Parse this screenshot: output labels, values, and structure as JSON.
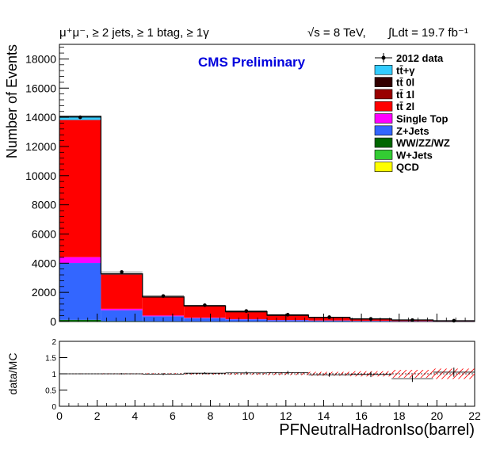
{
  "header": {
    "selection": "μ⁺μ⁻, ≥ 2 jets, ≥ 1 btag, ≥ 1γ",
    "energy": "√s = 8 TeV,",
    "lumi": "∫Ldt = 19.7 fb⁻¹"
  },
  "chart_data": {
    "type": "bar",
    "stacked": true,
    "cms_label": "CMS Preliminary",
    "xlabel": "PFNeutralHadronIso(barrel)",
    "ylabel": "Number of Events",
    "ratio_ylabel": "data/MC",
    "xlim": [
      0,
      22
    ],
    "ylim": [
      0,
      19000
    ],
    "ratio_ylim": [
      0,
      2
    ],
    "x_ticks": [
      0,
      2,
      4,
      6,
      8,
      10,
      12,
      14,
      16,
      18,
      20,
      22
    ],
    "y_ticks": [
      0,
      2000,
      4000,
      6000,
      8000,
      10000,
      12000,
      14000,
      16000,
      18000
    ],
    "ratio_ticks": [
      0,
      0.5,
      1,
      1.5,
      2
    ],
    "ratio_tick_labels": [
      "0",
      "0.5",
      "1",
      "1.5",
      "2"
    ],
    "bin_edges": [
      0,
      2.2,
      4.4,
      6.6,
      8.8,
      11.0,
      13.2,
      15.4,
      17.6,
      19.8,
      22.0
    ],
    "series": [
      {
        "name": "QCD",
        "color": "#ffff00",
        "values": [
          0,
          0,
          0,
          0,
          0,
          0,
          0,
          0,
          0,
          0
        ]
      },
      {
        "name": "W+Jets",
        "color": "#33cc33",
        "values": [
          15,
          5,
          3,
          2,
          2,
          1,
          1,
          1,
          0,
          0
        ]
      },
      {
        "name": "WW/ZZ/WZ",
        "color": "#006600",
        "values": [
          100,
          20,
          12,
          8,
          5,
          4,
          3,
          2,
          1,
          1
        ]
      },
      {
        "name": "Z+Jets",
        "color": "#3366ff",
        "values": [
          3900,
          750,
          350,
          220,
          140,
          90,
          60,
          40,
          25,
          15
        ]
      },
      {
        "name": "Single Top",
        "color": "#ff00ff",
        "values": [
          400,
          100,
          50,
          30,
          20,
          13,
          10,
          6,
          4,
          2
        ]
      },
      {
        "name": "tt̄ 2l",
        "color": "#ff0000",
        "values": [
          9400,
          2350,
          1250,
          800,
          500,
          320,
          210,
          130,
          80,
          40
        ]
      },
      {
        "name": "tt̄ 1l",
        "color": "#990000",
        "values": [
          0,
          0,
          0,
          0,
          0,
          0,
          0,
          0,
          0,
          0
        ]
      },
      {
        "name": "tt̄ 0l",
        "color": "#330000",
        "values": [
          0,
          0,
          0,
          0,
          0,
          0,
          0,
          0,
          0,
          0
        ]
      },
      {
        "name": "tt̄+γ",
        "color": "#33ccff",
        "values": [
          250,
          45,
          25,
          15,
          10,
          7,
          5,
          3,
          2,
          1
        ]
      }
    ],
    "data": {
      "name": "2012 data",
      "values": [
        14000,
        3400,
        1750,
        1120,
        720,
        470,
        300,
        180,
        100,
        55
      ]
    },
    "ratio": {
      "values": [
        1.0,
        1.0,
        0.99,
        1.02,
        1.03,
        1.04,
        0.97,
        0.98,
        0.85,
        1.05
      ],
      "errors": [
        0.01,
        0.02,
        0.03,
        0.03,
        0.04,
        0.05,
        0.06,
        0.08,
        0.1,
        0.14
      ],
      "band": [
        0.01,
        0.015,
        0.02,
        0.025,
        0.03,
        0.04,
        0.06,
        0.08,
        0.12,
        0.16
      ]
    },
    "legend_placement": "top-right"
  }
}
